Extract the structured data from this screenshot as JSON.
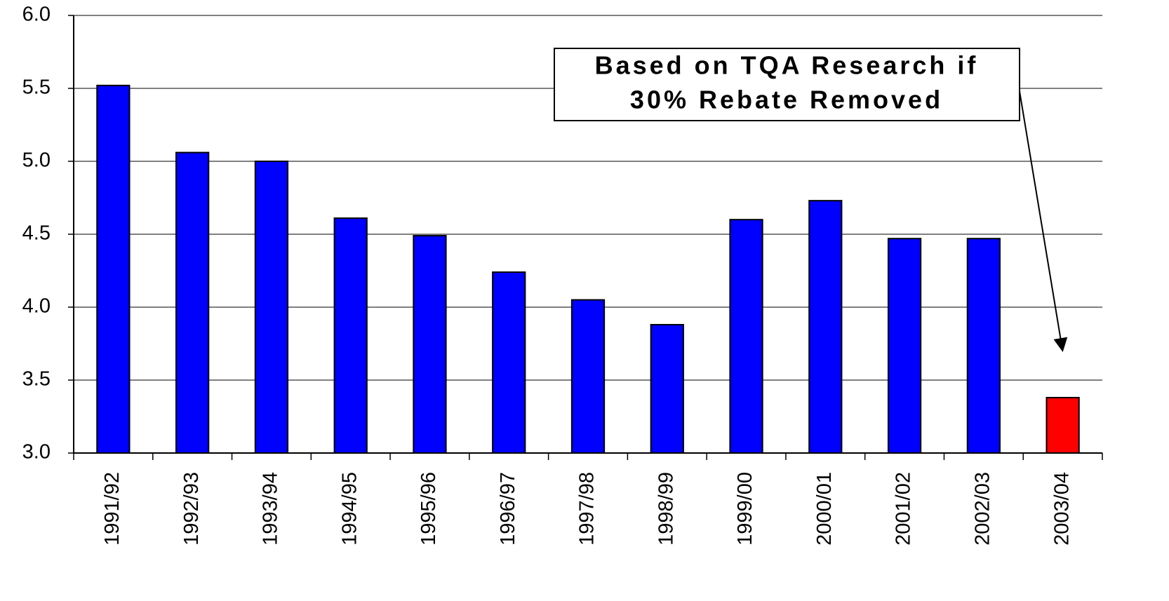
{
  "chart_data": {
    "type": "bar",
    "categories": [
      "1991/92",
      "1992/93",
      "1993/94",
      "1994/95",
      "1995/96",
      "1996/97",
      "1997/98",
      "1998/99",
      "1999/00",
      "2000/01",
      "2001/02",
      "2002/03",
      "2003/04"
    ],
    "values": [
      5.52,
      5.06,
      5.0,
      4.61,
      4.49,
      4.24,
      4.05,
      3.88,
      4.6,
      4.73,
      4.47,
      4.47,
      3.38
    ],
    "colors": [
      "#0000ff",
      "#0000ff",
      "#0000ff",
      "#0000ff",
      "#0000ff",
      "#0000ff",
      "#0000ff",
      "#0000ff",
      "#0000ff",
      "#0000ff",
      "#0000ff",
      "#0000ff",
      "#ff0000"
    ],
    "ylim": [
      3,
      6
    ],
    "yticks": [
      {
        "value": 3,
        "label": "3.0"
      },
      {
        "value": 3.5,
        "label": "3.5"
      },
      {
        "value": 4,
        "label": "4.0"
      },
      {
        "value": 4.5,
        "label": "4.5"
      },
      {
        "value": 5,
        "label": "5.0"
      },
      {
        "value": 5.5,
        "label": "5.5"
      },
      {
        "value": 6,
        "label": "6.0"
      }
    ],
    "grid": true,
    "annotation": [
      "Based on TQA Research if",
      "30% Rebate Removed"
    ]
  }
}
